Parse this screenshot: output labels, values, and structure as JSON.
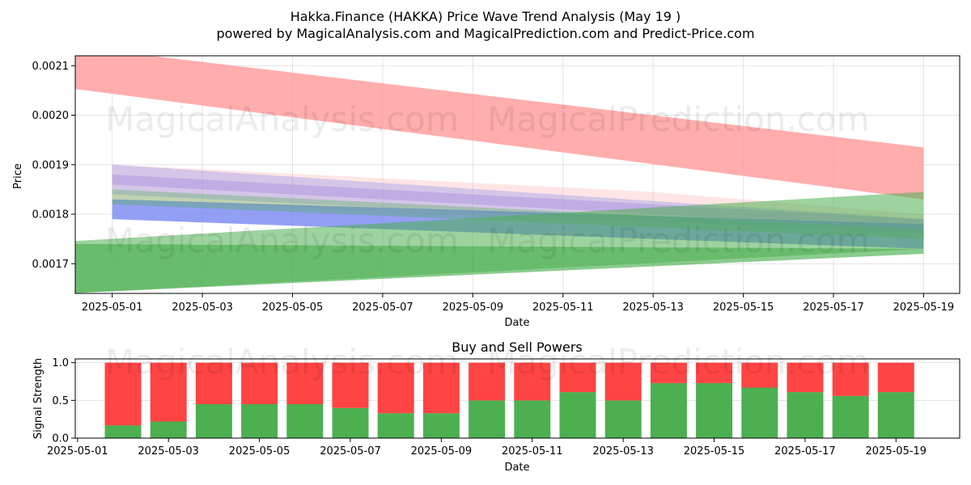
{
  "title": "Hakka.Finance (HAKKA) Price Wave Trend Analysis (May 19 )",
  "subtitle": "powered by MagicalAnalysis.com and MagicalPrediction.com and Predict-Price.com",
  "watermarks": [
    "MagicalAnalysis.com",
    "MagicalPrediction.com"
  ],
  "colors": {
    "buy": "#4caf50",
    "sell": "#ff4444",
    "red_band": "#ff9999",
    "blue_band": "#6f7ff0",
    "green_band": "#4caf50",
    "purple_band": "#c8a0d8"
  },
  "chart_data": [
    {
      "type": "area",
      "ylabel": "Price",
      "xlabel": "Date",
      "ylim": [
        0.00164,
        0.00212
      ],
      "xlim": [
        "2025-04-30",
        "2025-05-20"
      ],
      "x_ticks": [
        "2025-05-01",
        "2025-05-03",
        "2025-05-05",
        "2025-05-07",
        "2025-05-09",
        "2025-05-11",
        "2025-05-13",
        "2025-05-15",
        "2025-05-17",
        "2025-05-19"
      ],
      "y_ticks": [
        "0.0017",
        "0.0018",
        "0.0019",
        "0.0020",
        "0.0021"
      ],
      "grid": true,
      "series": [
        {
          "color": "red",
          "opacity": 0.8,
          "upper": [
            [
              "2025-04-30",
              0.00214
            ],
            [
              "2025-05-19",
              0.001935
            ]
          ],
          "lower": [
            [
              "2025-04-30",
              0.002055
            ],
            [
              "2025-05-19",
              0.00183
            ]
          ]
        },
        {
          "color": "red",
          "opacity": 0.25,
          "upper": [
            [
              "2025-05-01",
              0.0019
            ],
            [
              "2025-05-13",
              0.001845
            ],
            [
              "2025-05-19",
              0.0018
            ]
          ],
          "lower": [
            [
              "2025-05-01",
              0.00183
            ],
            [
              "2025-05-13",
              0.00178
            ],
            [
              "2025-05-19",
              0.00177
            ]
          ]
        },
        {
          "color": "purple",
          "opacity": 0.5,
          "upper": [
            [
              "2025-05-01",
              0.00188
            ],
            [
              "2025-05-19",
              0.00179
            ]
          ],
          "lower": [
            [
              "2025-05-01",
              0.00186
            ],
            [
              "2025-05-19",
              0.00177
            ]
          ]
        },
        {
          "color": "blue",
          "opacity": 0.3,
          "upper": [
            [
              "2025-05-01",
              0.0019
            ],
            [
              "2025-05-19",
              0.00179
            ]
          ],
          "lower": [
            [
              "2025-05-01",
              0.00184
            ],
            [
              "2025-05-19",
              0.00176
            ]
          ]
        },
        {
          "color": "blue",
          "opacity": 0.75,
          "upper": [
            [
              "2025-05-01",
              0.00183
            ],
            [
              "2025-05-19",
              0.00178
            ]
          ],
          "lower": [
            [
              "2025-05-01",
              0.00179
            ],
            [
              "2025-05-19",
              0.00173
            ]
          ]
        },
        {
          "color": "green",
          "opacity": 0.35,
          "upper": [
            [
              "2025-05-01",
              0.00185
            ],
            [
              "2025-05-19",
              0.00177
            ]
          ],
          "lower": [
            [
              "2025-05-01",
              0.00182
            ],
            [
              "2025-05-19",
              0.00175
            ]
          ]
        },
        {
          "color": "green",
          "opacity": 0.55,
          "upper": [
            [
              "2025-04-30",
              0.001745
            ],
            [
              "2025-05-19",
              0.001845
            ]
          ],
          "lower": [
            [
              "2025-04-30",
              0.00164
            ],
            [
              "2025-05-19",
              0.00173
            ]
          ]
        },
        {
          "color": "green",
          "opacity": 0.65,
          "upper": [
            [
              "2025-04-30",
              0.00174
            ],
            [
              "2025-05-19",
              0.00173
            ]
          ],
          "lower": [
            [
              "2025-04-30",
              0.00164
            ],
            [
              "2025-05-19",
              0.00172
            ]
          ]
        }
      ]
    },
    {
      "type": "bar",
      "title": "Buy and Sell Powers",
      "ylabel": "Signal Strength",
      "xlabel": "Date",
      "ylim": [
        0,
        1.05
      ],
      "xlim": [
        "2025-05-01",
        "2025-05-20"
      ],
      "x_ticks": [
        "2025-05-01",
        "2025-05-03",
        "2025-05-05",
        "2025-05-07",
        "2025-05-09",
        "2025-05-11",
        "2025-05-13",
        "2025-05-15",
        "2025-05-17",
        "2025-05-19"
      ],
      "y_ticks": [
        "0.0",
        "0.5",
        "1.0"
      ],
      "categories": [
        "2025-05-02",
        "2025-05-03",
        "2025-05-04",
        "2025-05-05",
        "2025-05-06",
        "2025-05-07",
        "2025-05-08",
        "2025-05-09",
        "2025-05-10",
        "2025-05-11",
        "2025-05-12",
        "2025-05-13",
        "2025-05-14",
        "2025-05-15",
        "2025-05-16",
        "2025-05-17",
        "2025-05-18",
        "2025-05-19"
      ],
      "series": [
        {
          "role": "buy",
          "values": [
            0.17,
            0.22,
            0.45,
            0.45,
            0.45,
            0.4,
            0.33,
            0.33,
            0.5,
            0.5,
            0.61,
            0.5,
            0.73,
            0.73,
            0.67,
            0.61,
            0.56,
            0.61
          ]
        },
        {
          "role": "sell",
          "values": [
            0.83,
            0.78,
            0.55,
            0.55,
            0.55,
            0.6,
            0.67,
            0.67,
            0.5,
            0.5,
            0.39,
            0.5,
            0.27,
            0.27,
            0.33,
            0.39,
            0.44,
            0.39
          ]
        }
      ]
    }
  ]
}
